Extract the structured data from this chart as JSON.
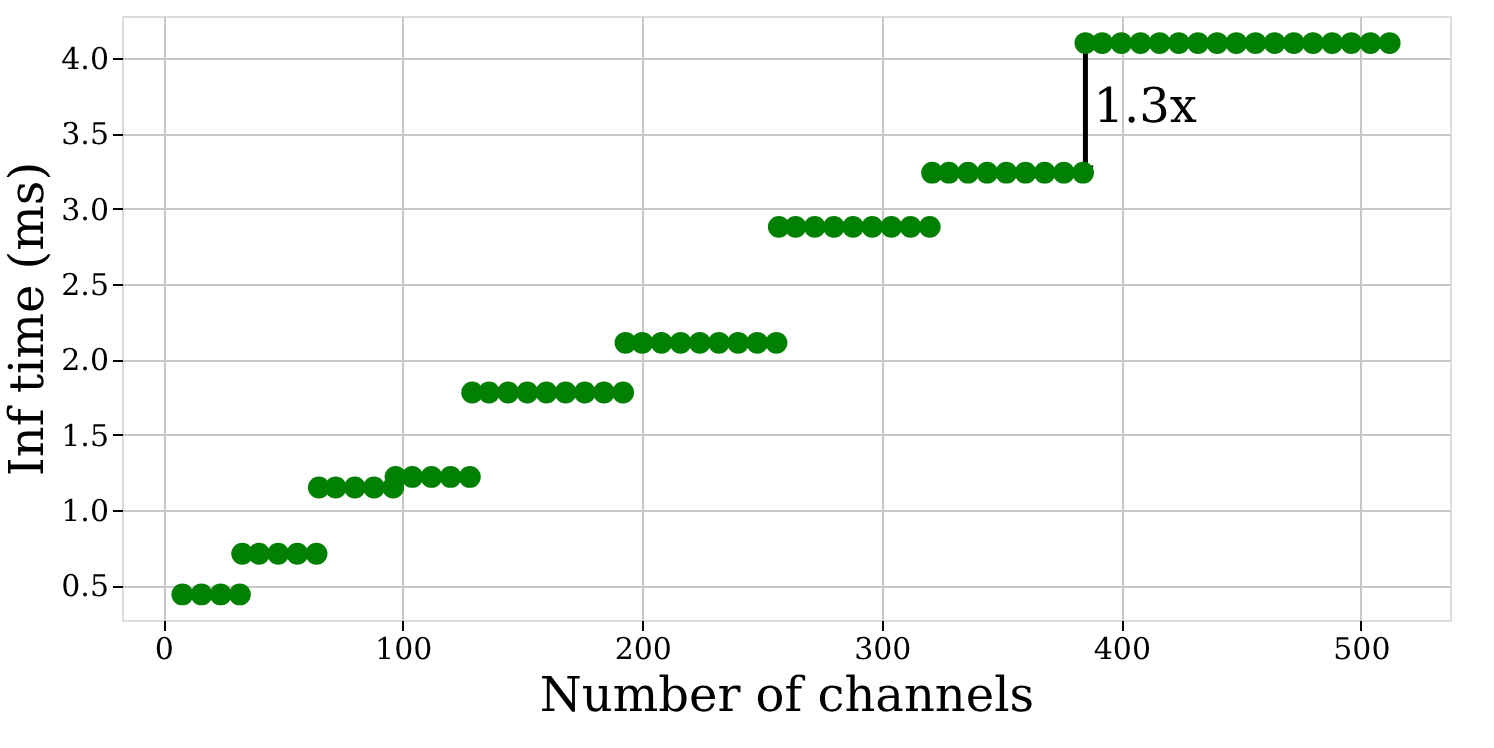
{
  "chart_data": {
    "type": "scatter",
    "xlabel": "Number of channels",
    "ylabel": "Inf time (ms)",
    "x": [
      8,
      16,
      24,
      32,
      33,
      40,
      48,
      56,
      64,
      65,
      72,
      80,
      88,
      96,
      97,
      104,
      112,
      120,
      128,
      129,
      136,
      144,
      152,
      160,
      168,
      176,
      184,
      192,
      193,
      200,
      208,
      216,
      224,
      232,
      240,
      248,
      256,
      257,
      264,
      272,
      280,
      288,
      296,
      304,
      312,
      320,
      321,
      328,
      336,
      344,
      352,
      360,
      368,
      376,
      384,
      385,
      392,
      400,
      408,
      416,
      424,
      432,
      440,
      448,
      456,
      464,
      472,
      480,
      488,
      496,
      504,
      512
    ],
    "series": [
      {
        "color": "#008000",
        "values": [
          0.44,
          0.44,
          0.44,
          0.44,
          0.71,
          0.71,
          0.71,
          0.71,
          0.71,
          1.15,
          1.15,
          1.15,
          1.15,
          1.15,
          1.22,
          1.22,
          1.22,
          1.22,
          1.22,
          1.78,
          1.78,
          1.78,
          1.78,
          1.78,
          1.78,
          1.78,
          1.78,
          1.78,
          2.11,
          2.11,
          2.11,
          2.11,
          2.11,
          2.11,
          2.11,
          2.11,
          2.11,
          2.88,
          2.88,
          2.88,
          2.88,
          2.88,
          2.88,
          2.88,
          2.88,
          2.88,
          3.24,
          3.24,
          3.24,
          3.24,
          3.24,
          3.24,
          3.24,
          3.24,
          3.24,
          4.1,
          4.1,
          4.1,
          4.1,
          4.1,
          4.1,
          4.1,
          4.1,
          4.1,
          4.1,
          4.1,
          4.1,
          4.1,
          4.1,
          4.1,
          4.1,
          4.1
        ]
      }
    ],
    "xlim": [
      -17.2,
      537.2
    ],
    "ylim": [
      0.27,
      4.28
    ],
    "xticks": [
      0,
      100,
      200,
      300,
      400,
      500
    ],
    "yticks": [
      0.5,
      {
        "value": 1,
        "label": "1.0"
      },
      1.5,
      {
        "value": 2,
        "label": "2.0"
      },
      2.5,
      {
        "value": 3,
        "label": "3.0"
      },
      3.5,
      {
        "value": 4,
        "label": "4.0"
      }
    ],
    "annotations": [
      "1.3x"
    ],
    "grid": true,
    "marker": "circle"
  }
}
